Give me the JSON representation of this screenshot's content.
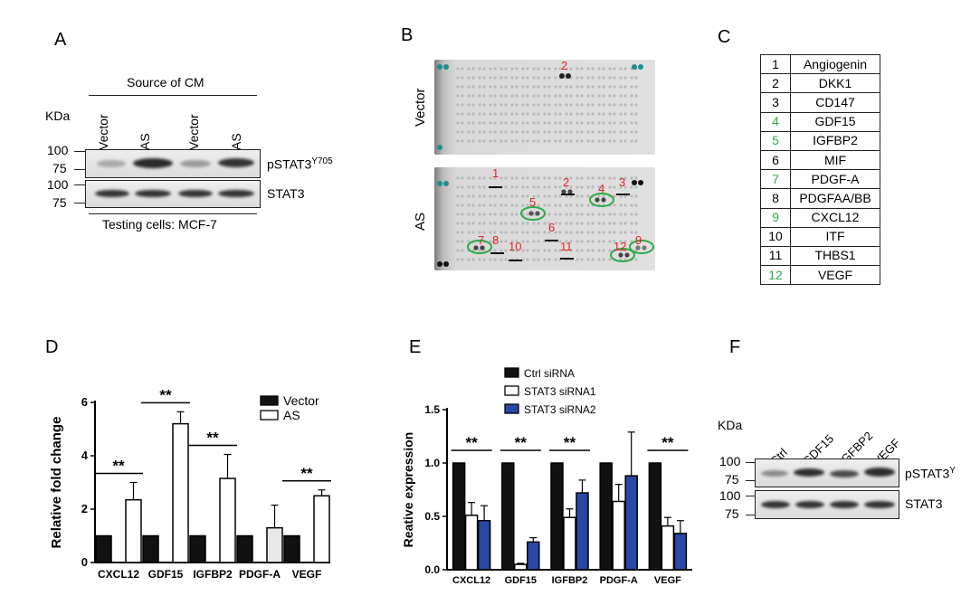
{
  "panels": {
    "A": {
      "label": "A",
      "header": "Source of CM",
      "lanes": [
        "Vector",
        "AS",
        "Vector",
        "AS"
      ],
      "kda_label": "KDa",
      "markers_top": [
        "100",
        "75"
      ],
      "markers_bottom": [
        "100",
        "75"
      ],
      "blot_labels": [
        "pSTAT3",
        "Y705",
        "STAT3"
      ],
      "footer": "Testing cells: MCF-7"
    },
    "B": {
      "label": "B",
      "row_labels": [
        "Vector",
        "AS"
      ],
      "spot_numbers": [
        "1",
        "2",
        "3",
        "4",
        "5",
        "6",
        "7",
        "8",
        "9",
        "10",
        "11",
        "12"
      ],
      "vector_spot": "2"
    },
    "C": {
      "label": "C",
      "rows": [
        {
          "n": "1",
          "name": "Angiogenin",
          "color": "#000000"
        },
        {
          "n": "2",
          "name": "DKK1",
          "color": "#000000"
        },
        {
          "n": "3",
          "name": "CD147",
          "color": "#000000"
        },
        {
          "n": "4",
          "name": "GDF15",
          "color": "#2eaa4a"
        },
        {
          "n": "5",
          "name": "IGFBP2",
          "color": "#2eaa4a"
        },
        {
          "n": "6",
          "name": "MIF",
          "color": "#000000"
        },
        {
          "n": "7",
          "name": "PDGF-A",
          "color": "#2eaa4a"
        },
        {
          "n": "8",
          "name": "PDGFAA/BB",
          "color": "#000000"
        },
        {
          "n": "9",
          "name": "CXCL12",
          "color": "#2eaa4a"
        },
        {
          "n": "10",
          "name": "ITF",
          "color": "#000000"
        },
        {
          "n": "11",
          "name": "THBS1",
          "color": "#000000"
        },
        {
          "n": "12",
          "name": "VEGF",
          "color": "#2eaa4a"
        }
      ]
    },
    "D": {
      "label": "D"
    },
    "E": {
      "label": "E"
    },
    "F": {
      "label": "F",
      "kda_label": "KDa",
      "lanes": [
        "Ctrl",
        "GDF15",
        "IGFBP2",
        "VEGF"
      ],
      "markers_top": [
        "100",
        "75"
      ],
      "markers_bottom": [
        "100",
        "75"
      ],
      "blot_labels": [
        "pSTAT3",
        "Y",
        "STAT3"
      ]
    }
  },
  "chart_data": [
    {
      "panel": "D",
      "type": "bar",
      "ylabel": "Relative fold change",
      "ylim": [
        0,
        6
      ],
      "yticks": [
        "0",
        "2",
        "4",
        "6"
      ],
      "categories": [
        "CXCL12",
        "GDF15",
        "IGFBP2",
        "PDGF-A",
        "VEGF"
      ],
      "legend_position": "top-right",
      "series": [
        {
          "name": "Vector",
          "color": "#111111",
          "values": [
            1,
            1,
            1,
            1,
            1
          ],
          "errors": [
            0,
            0,
            0,
            0,
            0
          ]
        },
        {
          "name": "AS",
          "color": "#ffffff",
          "values": [
            2.35,
            5.2,
            3.15,
            1.3,
            2.5
          ],
          "errors": [
            0.65,
            0.45,
            0.9,
            0.85,
            0.22
          ]
        }
      ],
      "significance": [
        "**",
        "**",
        "**",
        "",
        "**"
      ]
    },
    {
      "panel": "E",
      "type": "bar",
      "ylabel": "Reative expression",
      "ylim": [
        0,
        1.5
      ],
      "yticks": [
        "0.0",
        "0.5",
        "1.0",
        "1.5"
      ],
      "categories": [
        "CXCL12",
        "GDF15",
        "IGFBP2",
        "PDGF-A",
        "VEGF"
      ],
      "legend_position": "top",
      "series": [
        {
          "name": "Ctrl siRNA",
          "color": "#111111",
          "values": [
            1,
            1,
            1,
            1,
            1
          ],
          "errors": [
            0,
            0,
            0,
            0,
            0
          ]
        },
        {
          "name": "STAT3 siRNA1",
          "color": "#ffffff",
          "values": [
            0.51,
            0.05,
            0.49,
            0.64,
            0.41
          ],
          "errors": [
            0.12,
            0.01,
            0.08,
            0.16,
            0.08
          ]
        },
        {
          "name": "STAT3 siRNA2",
          "color": "#2b47a6",
          "values": [
            0.46,
            0.26,
            0.72,
            0.88,
            0.34
          ],
          "errors": [
            0.14,
            0.04,
            0.12,
            0.41,
            0.12
          ]
        }
      ],
      "significance": [
        "**",
        "**",
        "**",
        "",
        "**"
      ]
    }
  ]
}
